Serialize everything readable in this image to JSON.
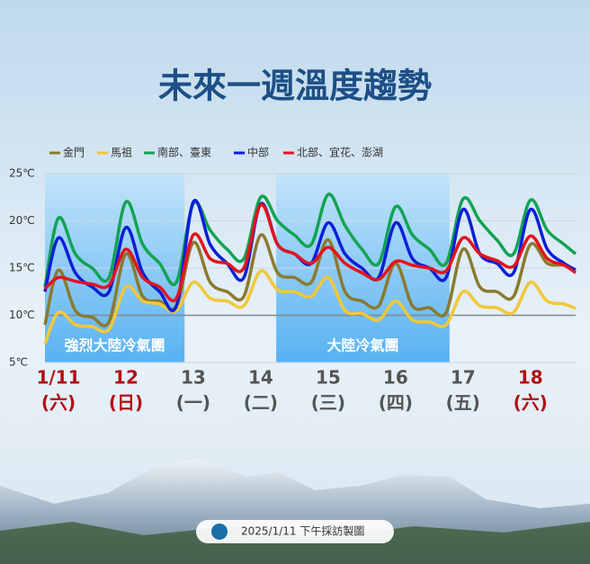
{
  "chart_data": {
    "type": "line",
    "title": "未來一週溫度趨勢",
    "x": [
      -0.2,
      0,
      0.25,
      0.5,
      0.75,
      1,
      1.25,
      1.5,
      1.75,
      2,
      2.25,
      2.5,
      2.75,
      3,
      3.25,
      3.5,
      3.75,
      4,
      4.25,
      4.5,
      4.75,
      5,
      5.25,
      5.5,
      5.75,
      6,
      6.25,
      6.5,
      6.75,
      7,
      7.25,
      7.5,
      7.67
    ],
    "series": [
      {
        "name": "金門",
        "color": "#8a7a2e",
        "values": [
          9,
          14.8,
          10.5,
          9.8,
          9.3,
          16.5,
          12,
          11.5,
          11,
          17.7,
          13.5,
          12.5,
          12,
          18.5,
          14.5,
          14,
          13.5,
          18,
          12.5,
          11.5,
          11,
          15.5,
          11,
          10.8,
          10.3,
          17,
          13,
          12.5,
          12,
          17.5,
          15.5,
          15.3,
          14.8
        ]
      },
      {
        "name": "馬祖",
        "color": "#f2c73a",
        "values": [
          7,
          10.3,
          9,
          8.8,
          8.5,
          13,
          11.5,
          11.2,
          10.5,
          13.5,
          11.8,
          11.5,
          11,
          14.7,
          12.7,
          12.5,
          12,
          14,
          10.5,
          10.2,
          9.5,
          11.5,
          9.5,
          9.3,
          9,
          12.5,
          11,
          10.8,
          10.3,
          13.5,
          11.5,
          11.2,
          10.7
        ]
      },
      {
        "name": "南部、臺東",
        "color": "#13a353",
        "values": [
          13,
          20.3,
          16.5,
          15,
          14,
          22,
          17.5,
          15.5,
          13.5,
          21.8,
          19,
          17,
          16,
          22.5,
          20,
          18.5,
          17.5,
          22.8,
          19.5,
          17,
          15.5,
          21.5,
          18.5,
          17,
          15.5,
          22.3,
          20,
          18,
          16.5,
          22.2,
          19,
          17.5,
          16.5
        ]
      },
      {
        "name": "中部",
        "color": "#0a1fd8",
        "values": [
          12.5,
          18.2,
          14.5,
          13,
          12.5,
          19.3,
          14.5,
          12.5,
          11,
          22,
          17.5,
          15.5,
          14,
          21.8,
          17.5,
          16.5,
          15.5,
          19.8,
          16.5,
          15,
          14,
          19.8,
          16,
          15,
          14,
          21.2,
          16.5,
          15.5,
          14.5,
          21.2,
          17,
          15.5,
          14.8
        ]
      },
      {
        "name": "北部、宜花、澎湖",
        "color": "#e3141e",
        "values": [
          12.8,
          14,
          13.6,
          13.3,
          13.2,
          17,
          14,
          13,
          11.8,
          18.5,
          16,
          15.5,
          15,
          21.7,
          17.5,
          16.5,
          15.5,
          17.2,
          15.5,
          14.5,
          13.8,
          15.7,
          15.3,
          15,
          14.7,
          18.2,
          16.5,
          15.8,
          15.2,
          18.4,
          16,
          15.3,
          14.5
        ]
      }
    ],
    "xlim": [
      -0.2,
      7.67
    ],
    "xticks": [
      {
        "value": 0,
        "label": "1/11"
      },
      {
        "value": 1,
        "label": "12"
      },
      {
        "value": 2,
        "label": "13"
      },
      {
        "value": 3,
        "label": "14"
      },
      {
        "value": 4,
        "label": "15"
      },
      {
        "value": 5,
        "label": "16"
      },
      {
        "value": 6,
        "label": "17"
      },
      {
        "value": 7,
        "label": "18"
      }
    ],
    "weekdays": [
      "(六)",
      "(日)",
      "(一)",
      "(二)",
      "(三)",
      "(四)",
      "(五)",
      "(六)"
    ],
    "xtick_colors": [
      "#b01015",
      "#b01015",
      "#555555",
      "#555555",
      "#555555",
      "#555555",
      "#555555",
      "#b01015"
    ],
    "ylim": [
      5,
      25
    ],
    "yticks": [
      {
        "value": 5,
        "label": "5℃"
      },
      {
        "value": 10,
        "label": "10℃"
      },
      {
        "value": 15,
        "label": "15℃"
      },
      {
        "value": 20,
        "label": "20℃"
      },
      {
        "value": 25,
        "label": "25℃"
      }
    ],
    "grid": true,
    "legend": "top",
    "shaded_periods": [
      {
        "label": "強烈大陸冷氣團",
        "xlim": [
          -0.2,
          1.87
        ]
      },
      {
        "label": "大陸冷氣團",
        "xlim": [
          3.23,
          5.8
        ]
      }
    ]
  },
  "footer": "2025/1/11 下午採訪製圖"
}
